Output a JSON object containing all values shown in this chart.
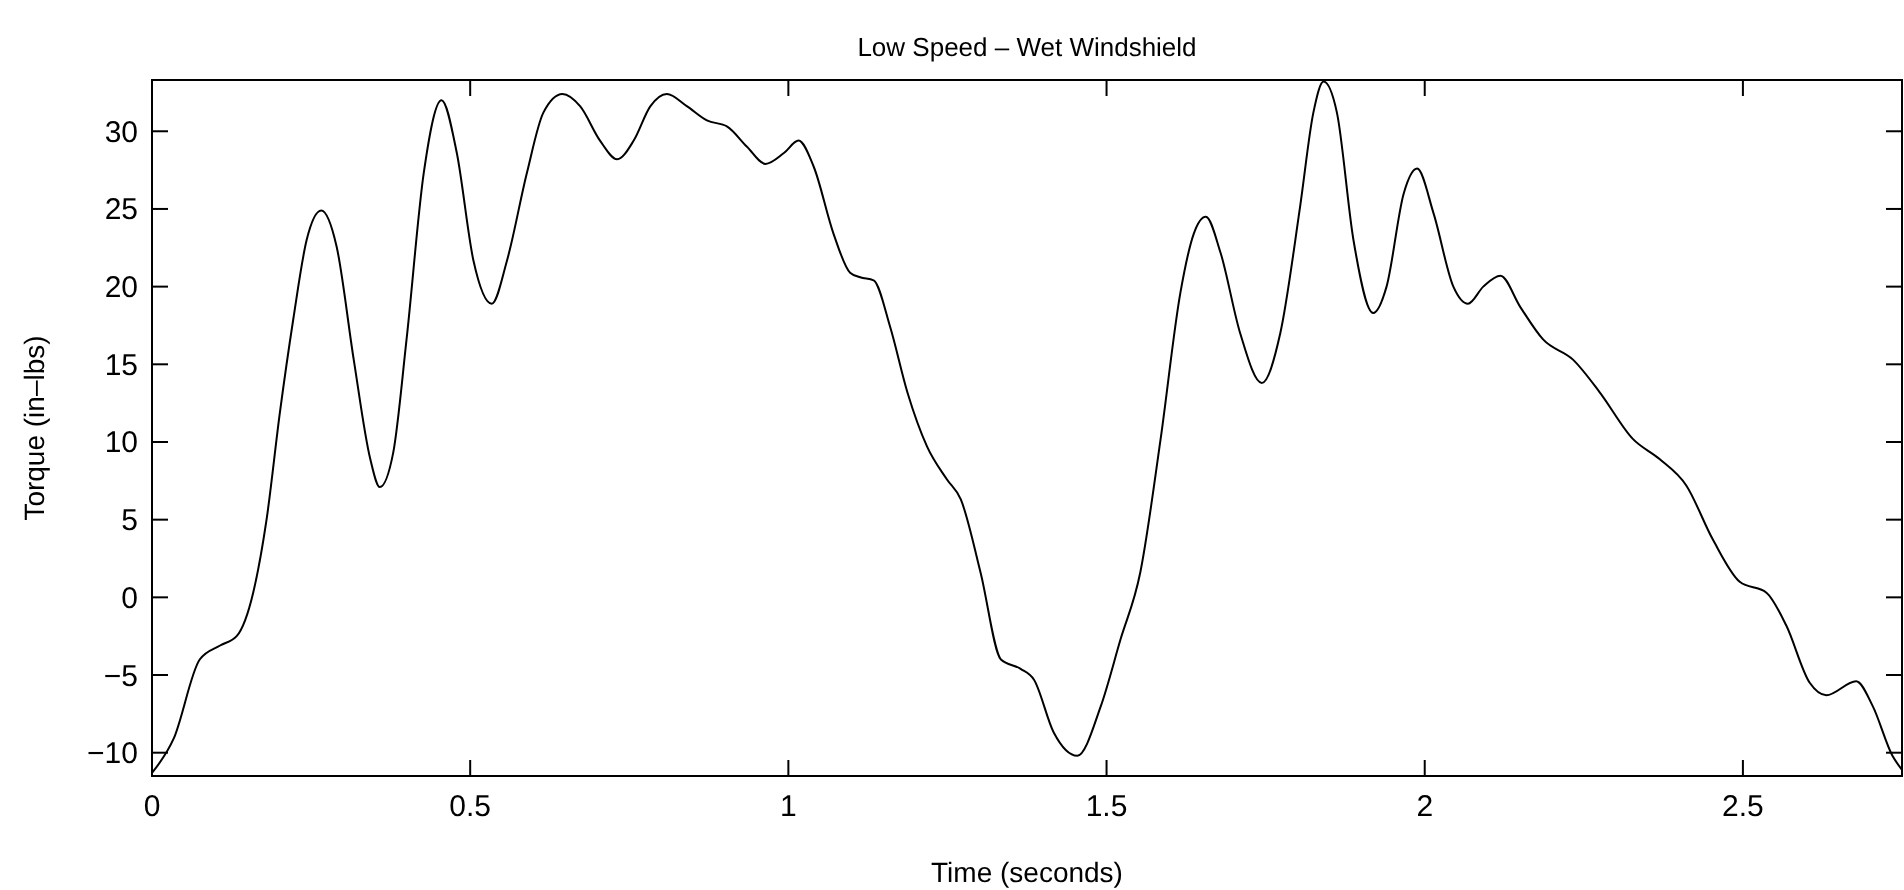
{
  "chart_data": {
    "type": "line",
    "title": "Low Speed – Wet Windshield",
    "xlabel": "Time (seconds)",
    "ylabel": "Torque (in–lbs)",
    "xlim": [
      0,
      2.75
    ],
    "ylim": [
      -11.5,
      33.3
    ],
    "xticks": [
      0,
      0.5,
      1,
      1.5,
      2,
      2.5
    ],
    "yticks": [
      {
        "value": -10,
        "label": "−10"
      },
      {
        "value": -5,
        "label": "−5"
      },
      0,
      5,
      10,
      15,
      20,
      25,
      30
    ],
    "grid": false,
    "marker": "none",
    "line_style": "solid",
    "series": [
      {
        "color": "#000000",
        "x": [
          0,
          0.034,
          0.075,
          0.107,
          0.133,
          0.159,
          0.18,
          0.201,
          0.222,
          0.243,
          0.266,
          0.29,
          0.317,
          0.343,
          0.358,
          0.379,
          0.4,
          0.427,
          0.455,
          0.479,
          0.505,
          0.534,
          0.558,
          0.589,
          0.615,
          0.645,
          0.673,
          0.704,
          0.731,
          0.757,
          0.783,
          0.809,
          0.841,
          0.872,
          0.904,
          0.935,
          0.964,
          0.993,
          1.016,
          1.04,
          1.071,
          1.097,
          1.113,
          1.134,
          1.16,
          1.187,
          1.218,
          1.249,
          1.271,
          1.302,
          1.334,
          1.365,
          1.386,
          1.417,
          1.454,
          1.491,
          1.522,
          1.553,
          1.585,
          1.616,
          1.637,
          1.656,
          1.679,
          1.71,
          1.744,
          1.773,
          1.804,
          1.825,
          1.841,
          1.862,
          1.888,
          1.919,
          1.94,
          1.967,
          1.988,
          2.014,
          2.045,
          2.068,
          2.092,
          2.119,
          2.15,
          2.186,
          2.233,
          2.275,
          2.327,
          2.369,
          2.411,
          2.453,
          2.495,
          2.537,
          2.568,
          2.605,
          2.631,
          2.678,
          2.704,
          2.735,
          2.75
        ],
        "values": [
          -11.3,
          -9.1,
          -4.0,
          -3.1,
          -2.5,
          0.3,
          5.0,
          11.9,
          17.9,
          23.0,
          24.9,
          22.6,
          15.3,
          8.9,
          7.1,
          9.3,
          16.6,
          27.3,
          32.0,
          28.6,
          21.7,
          18.9,
          21.7,
          27.3,
          31.2,
          32.4,
          31.6,
          29.4,
          28.2,
          29.4,
          31.6,
          32.4,
          31.6,
          30.7,
          30.3,
          29.0,
          27.9,
          28.6,
          29.4,
          27.7,
          23.4,
          20.9,
          20.6,
          20.4,
          17.4,
          13.2,
          9.7,
          7.6,
          6.3,
          1.6,
          -4.0,
          -4.6,
          -5.3,
          -8.7,
          -10.2,
          -7.0,
          -2.7,
          1.6,
          10.2,
          19.6,
          23.4,
          24.5,
          22.2,
          17.0,
          13.8,
          17.0,
          25.1,
          31.2,
          33.2,
          31.2,
          23.0,
          18.3,
          20.0,
          26.0,
          27.6,
          24.7,
          20.0,
          18.9,
          20.0,
          20.7,
          18.7,
          16.6,
          15.3,
          13.2,
          10.2,
          8.9,
          7.2,
          3.7,
          1.0,
          0.3,
          -1.8,
          -5.5,
          -6.3,
          -5.4,
          -7.0,
          -10.2,
          -11.1
        ]
      }
    ]
  }
}
